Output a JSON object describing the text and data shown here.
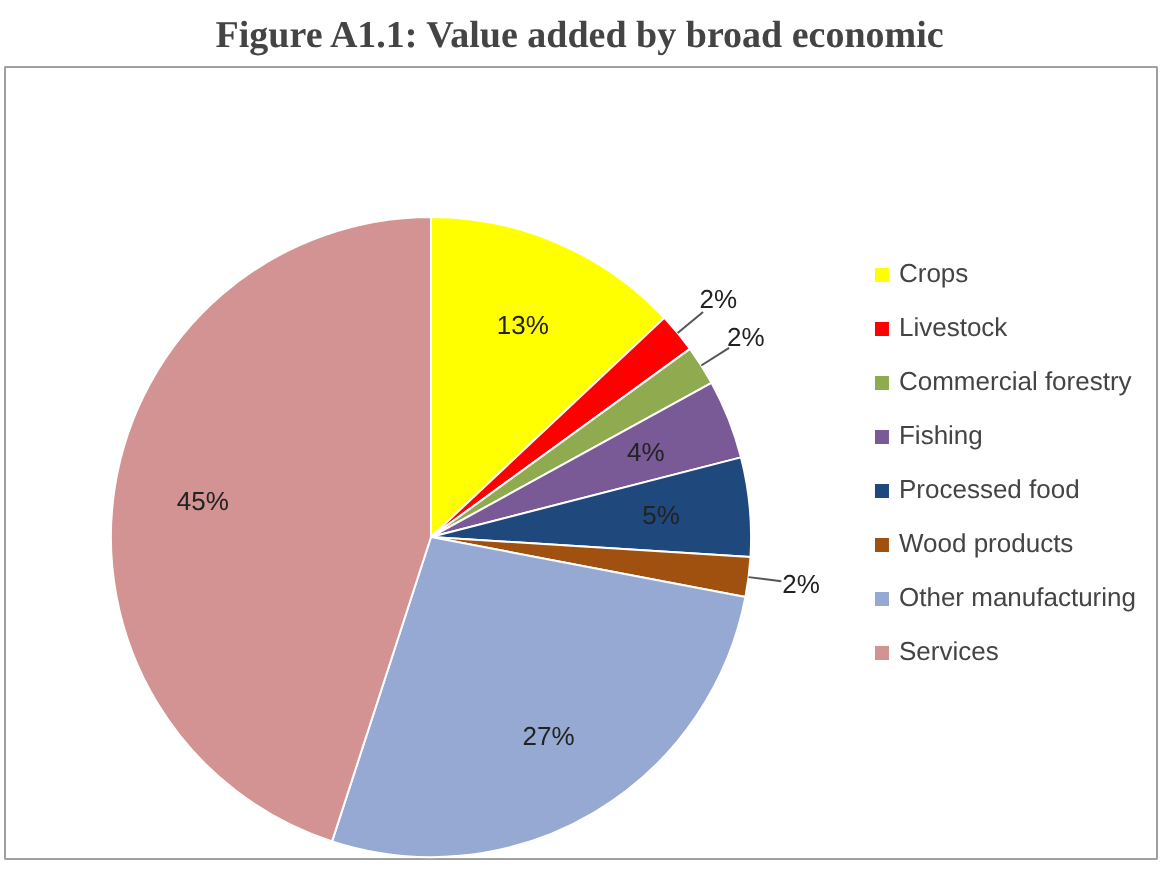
{
  "chart_data": {
    "type": "pie",
    "title": "Figure A1.1: Value added by broad economic",
    "categories": [
      "Crops",
      "Livestock",
      "Commercial forestry",
      "Fishing",
      "Processed food",
      "Wood products",
      "Other manufacturing",
      "Services"
    ],
    "values": [
      13,
      2,
      2,
      4,
      5,
      2,
      27,
      45
    ],
    "value_labels": [
      "13%",
      "2%",
      "2%",
      "4%",
      "5%",
      "2%",
      "27%",
      "45%"
    ],
    "colors": [
      "#ffff00",
      "#ff0000",
      "#8faa4f",
      "#7a5a96",
      "#1f497d",
      "#a0510f",
      "#95a9d2",
      "#d29392"
    ],
    "legend": "right"
  }
}
